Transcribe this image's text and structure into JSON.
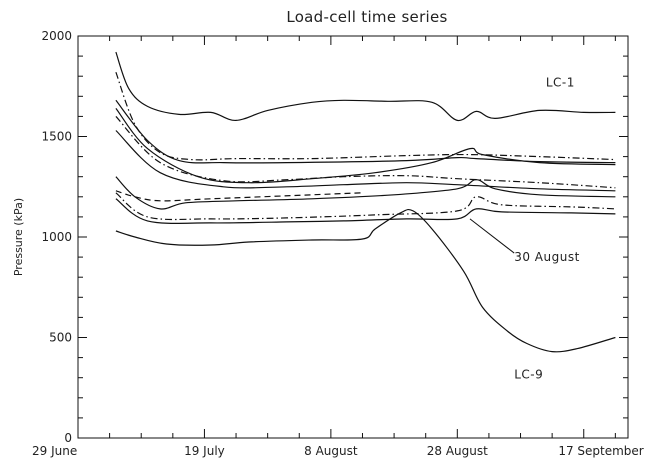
{
  "chart_data": {
    "type": "line",
    "title": "Load-cell time series",
    "ylabel": "Pressure (kPa)",
    "xlabel": "",
    "ylim": [
      0,
      2000
    ],
    "xlim": [
      "2000-06-29",
      "2000-09-24"
    ],
    "xticks": [
      {
        "date": "2000-06-29",
        "label": "29 June"
      },
      {
        "date": "2000-07-19",
        "label": "19 July"
      },
      {
        "date": "2000-08-08",
        "label": "8 August"
      },
      {
        "date": "2000-08-28",
        "label": "28 August"
      },
      {
        "date": "2000-09-17",
        "label": "17 September"
      }
    ],
    "yticks": [
      0,
      500,
      1000,
      1500,
      2000
    ],
    "grid": false,
    "annotations": [
      {
        "text": "LC-1",
        "date": "2000-09-11",
        "value": 1750
      },
      {
        "text": "30 August",
        "date": "2000-09-06",
        "value": 880
      },
      {
        "text": "LC-9",
        "date": "2000-09-06",
        "value": 295
      }
    ],
    "annotation_pointer": {
      "from": [
        "2000-09-06",
        920
      ],
      "to": [
        "2000-08-30",
        1090
      ]
    },
    "series": [
      {
        "style": "solid",
        "points": [
          [
            "2000-07-05",
            1920
          ],
          [
            "2000-07-07",
            1740
          ],
          [
            "2000-07-10",
            1650
          ],
          [
            "2000-07-15",
            1610
          ],
          [
            "2000-07-20",
            1620
          ],
          [
            "2000-07-24",
            1580
          ],
          [
            "2000-07-29",
            1630
          ],
          [
            "2000-08-05",
            1670
          ],
          [
            "2000-08-10",
            1680
          ],
          [
            "2000-08-17",
            1675
          ],
          [
            "2000-08-24",
            1670
          ],
          [
            "2000-08-28",
            1580
          ],
          [
            "2000-08-31",
            1625
          ],
          [
            "2000-09-03",
            1590
          ],
          [
            "2000-09-10",
            1630
          ],
          [
            "2000-09-17",
            1620
          ],
          [
            "2000-09-22",
            1620
          ]
        ]
      },
      {
        "style": "dash-dot",
        "points": [
          [
            "2000-07-05",
            1820
          ],
          [
            "2000-07-08",
            1560
          ],
          [
            "2000-07-12",
            1420
          ],
          [
            "2000-07-17",
            1385
          ],
          [
            "2000-07-24",
            1390
          ],
          [
            "2000-08-05",
            1390
          ],
          [
            "2000-08-20",
            1405
          ],
          [
            "2000-08-30",
            1410
          ],
          [
            "2000-09-10",
            1400
          ],
          [
            "2000-09-22",
            1385
          ]
        ]
      },
      {
        "style": "solid",
        "points": [
          [
            "2000-07-05",
            1680
          ],
          [
            "2000-07-10",
            1480
          ],
          [
            "2000-07-15",
            1380
          ],
          [
            "2000-07-22",
            1370
          ],
          [
            "2000-08-01",
            1370
          ],
          [
            "2000-08-20",
            1380
          ],
          [
            "2000-08-28",
            1395
          ],
          [
            "2000-08-31",
            1390
          ],
          [
            "2000-09-10",
            1375
          ],
          [
            "2000-09-22",
            1370
          ]
        ]
      },
      {
        "style": "solid",
        "points": [
          [
            "2000-07-05",
            1640
          ],
          [
            "2000-07-10",
            1440
          ],
          [
            "2000-07-18",
            1300
          ],
          [
            "2000-07-26",
            1270
          ],
          [
            "2000-08-05",
            1290
          ],
          [
            "2000-08-15",
            1320
          ],
          [
            "2000-08-24",
            1370
          ],
          [
            "2000-08-30",
            1440
          ],
          [
            "2000-09-01",
            1410
          ],
          [
            "2000-09-10",
            1370
          ],
          [
            "2000-09-22",
            1360
          ]
        ]
      },
      {
        "style": "dash-dot",
        "points": [
          [
            "2000-07-05",
            1600
          ],
          [
            "2000-07-12",
            1370
          ],
          [
            "2000-07-22",
            1280
          ],
          [
            "2000-08-01",
            1285
          ],
          [
            "2000-08-10",
            1300
          ],
          [
            "2000-08-20",
            1305
          ],
          [
            "2000-08-28",
            1290
          ],
          [
            "2000-09-10",
            1270
          ],
          [
            "2000-09-22",
            1245
          ]
        ]
      },
      {
        "style": "solid",
        "points": [
          [
            "2000-07-05",
            1530
          ],
          [
            "2000-07-12",
            1320
          ],
          [
            "2000-07-22",
            1250
          ],
          [
            "2000-08-01",
            1250
          ],
          [
            "2000-08-10",
            1260
          ],
          [
            "2000-08-20",
            1270
          ],
          [
            "2000-08-28",
            1260
          ],
          [
            "2000-09-10",
            1240
          ],
          [
            "2000-09-22",
            1230
          ]
        ]
      },
      {
        "style": "solid",
        "points": [
          [
            "2000-07-05",
            1300
          ],
          [
            "2000-07-08",
            1200
          ],
          [
            "2000-07-12",
            1140
          ],
          [
            "2000-07-16",
            1170
          ],
          [
            "2000-07-24",
            1180
          ],
          [
            "2000-08-05",
            1190
          ],
          [
            "2000-08-18",
            1210
          ],
          [
            "2000-08-28",
            1240
          ],
          [
            "2000-08-31",
            1285
          ],
          [
            "2000-09-03",
            1240
          ],
          [
            "2000-09-10",
            1210
          ],
          [
            "2000-09-22",
            1200
          ]
        ]
      },
      {
        "style": "dash-dot",
        "points": [
          [
            "2000-07-05",
            1220
          ],
          [
            "2000-07-10",
            1100
          ],
          [
            "2000-07-20",
            1090
          ],
          [
            "2000-08-01",
            1095
          ],
          [
            "2000-08-15",
            1110
          ],
          [
            "2000-08-28",
            1130
          ],
          [
            "2000-08-31",
            1200
          ],
          [
            "2000-09-04",
            1160
          ],
          [
            "2000-09-15",
            1150
          ],
          [
            "2000-09-22",
            1140
          ]
        ]
      },
      {
        "style": "solid",
        "points": [
          [
            "2000-07-05",
            1190
          ],
          [
            "2000-07-10",
            1080
          ],
          [
            "2000-07-20",
            1070
          ],
          [
            "2000-08-01",
            1075
          ],
          [
            "2000-08-10",
            1080
          ],
          [
            "2000-08-20",
            1090
          ],
          [
            "2000-08-28",
            1090
          ],
          [
            "2000-08-31",
            1140
          ],
          [
            "2000-09-04",
            1125
          ],
          [
            "2000-09-15",
            1120
          ],
          [
            "2000-09-22",
            1115
          ]
        ]
      },
      {
        "style": "dashed",
        "points": [
          [
            "2000-07-05",
            1230
          ],
          [
            "2000-07-08",
            1200
          ],
          [
            "2000-07-12",
            1180
          ],
          [
            "2000-07-20",
            1190
          ],
          [
            "2000-08-05",
            1210
          ],
          [
            "2000-08-13",
            1220
          ]
        ]
      },
      {
        "style": "solid",
        "points": [
          [
            "2000-07-05",
            1030
          ],
          [
            "2000-07-08",
            1000
          ],
          [
            "2000-07-13",
            965
          ],
          [
            "2000-07-20",
            960
          ],
          [
            "2000-07-26",
            975
          ],
          [
            "2000-08-05",
            985
          ],
          [
            "2000-08-13",
            990
          ],
          [
            "2000-08-15",
            1040
          ],
          [
            "2000-08-19",
            1120
          ],
          [
            "2000-08-21",
            1130
          ],
          [
            "2000-08-24",
            1040
          ],
          [
            "2000-08-29",
            830
          ],
          [
            "2000-09-01",
            650
          ],
          [
            "2000-09-05",
            530
          ],
          [
            "2000-09-08",
            470
          ],
          [
            "2000-09-12",
            430
          ],
          [
            "2000-09-16",
            445
          ],
          [
            "2000-09-22",
            500
          ]
        ]
      }
    ]
  }
}
